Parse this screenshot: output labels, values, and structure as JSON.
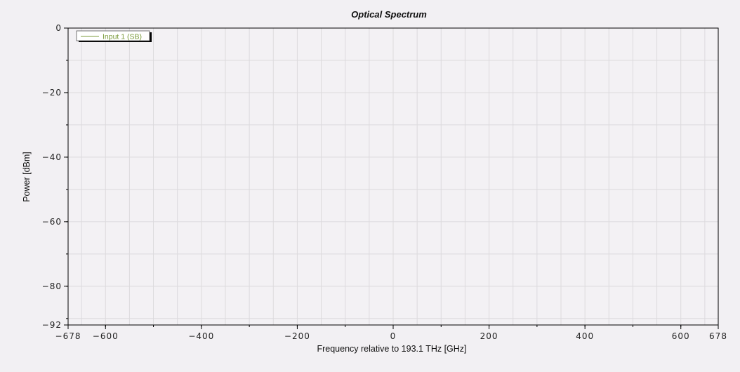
{
  "chart_data": {
    "type": "line",
    "title": "Optical Spectrum",
    "xlabel": "Frequency relative to 193.1 THz [GHz]",
    "ylabel": "Power [dBm]",
    "xlim": [
      -678,
      678
    ],
    "ylim": [
      -92,
      0
    ],
    "x_ticks": [
      -678,
      -600,
      -400,
      -200,
      0,
      200,
      400,
      600,
      678
    ],
    "x_tick_labels": [
      "−678",
      "−600",
      "−400",
      "−200",
      "0",
      "200",
      "400",
      "600",
      "678"
    ],
    "y_ticks": [
      0,
      -20,
      -40,
      -60,
      -80,
      -92
    ],
    "y_tick_labels": [
      "0",
      "−20",
      "−40",
      "−60",
      "−80",
      "−92"
    ],
    "x_minor_step": 100,
    "y_minor_step": 10,
    "grid": true,
    "legend_position": "top-left",
    "series": [
      {
        "name": "Input 1  (SB)",
        "color": "#7a9a3a",
        "x": [],
        "y": []
      }
    ]
  }
}
